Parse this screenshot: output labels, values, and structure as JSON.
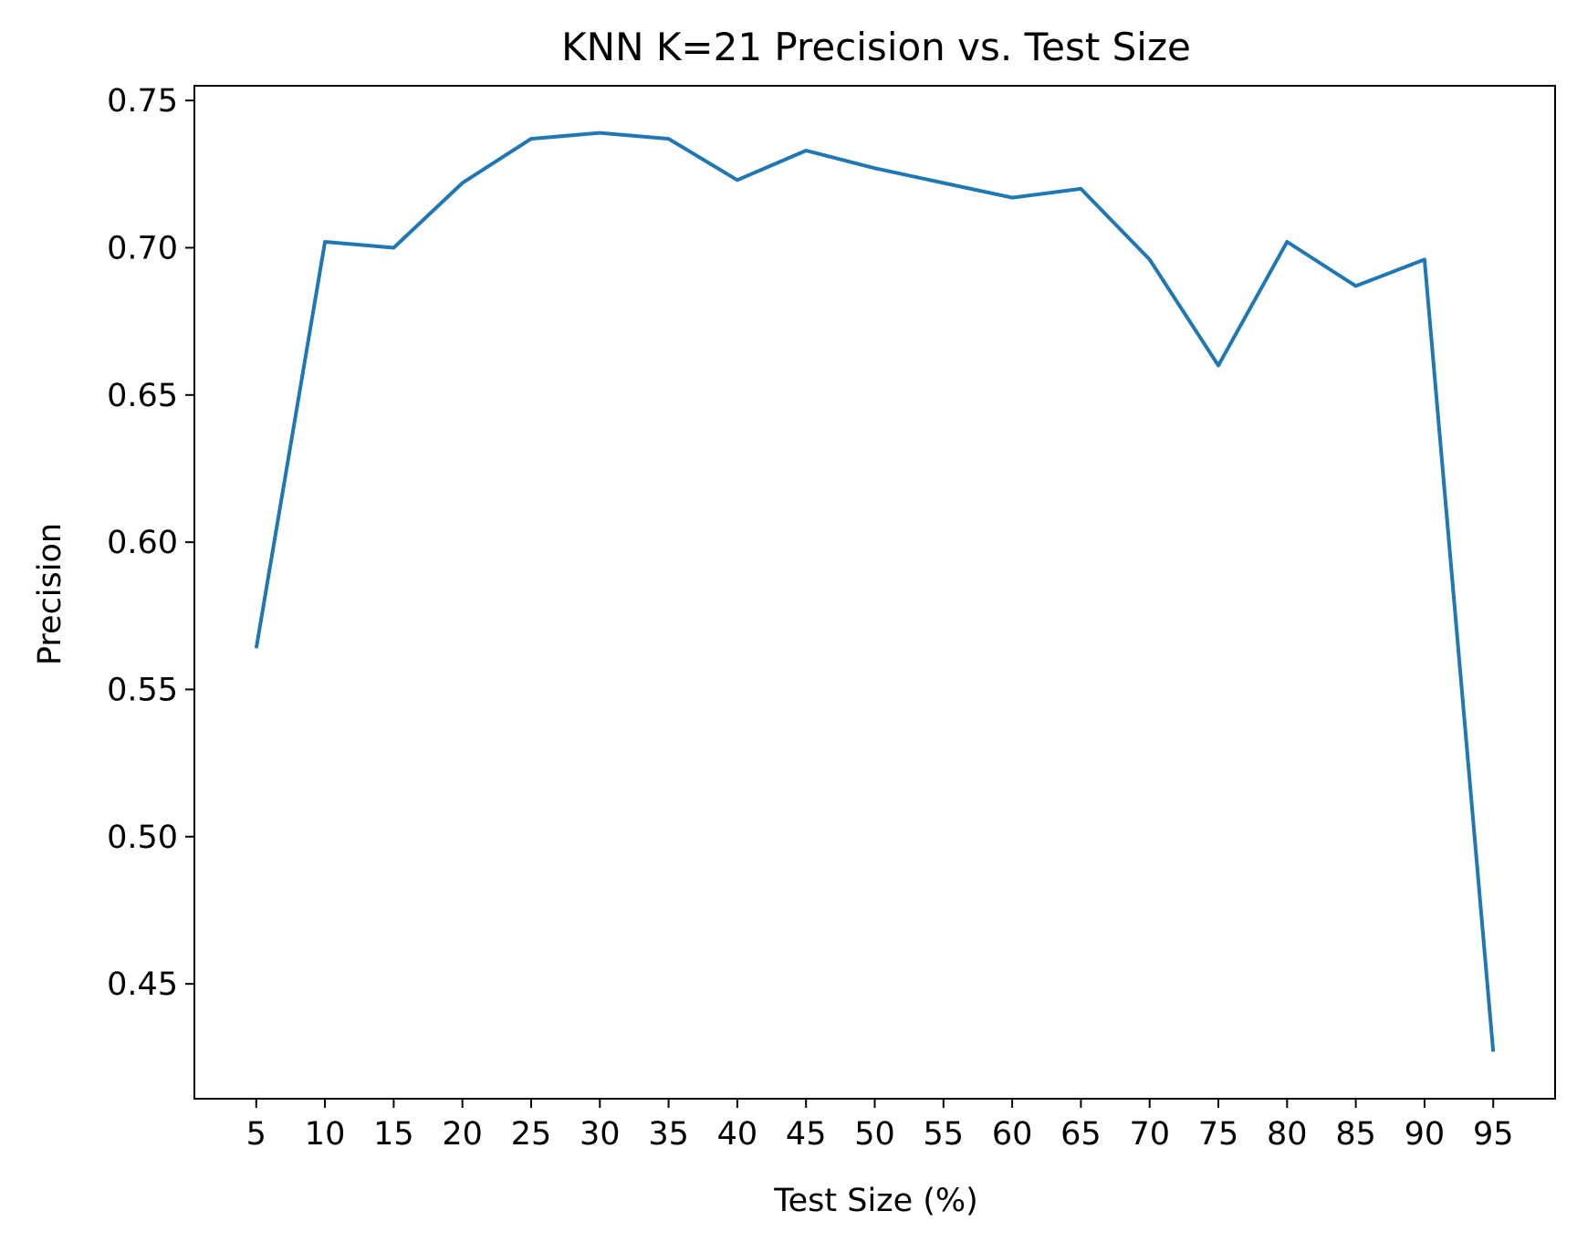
{
  "chart_data": {
    "type": "line",
    "title": "KNN K=21  Precision vs. Test Size",
    "xlabel": "Test Size (%)",
    "ylabel": "Precision",
    "x": [
      5,
      10,
      15,
      20,
      25,
      30,
      35,
      40,
      45,
      50,
      55,
      60,
      65,
      70,
      75,
      80,
      85,
      90,
      95
    ],
    "series": [
      {
        "values": [
          0.564,
          0.702,
          0.7,
          0.722,
          0.737,
          0.739,
          0.737,
          0.723,
          0.733,
          0.727,
          0.722,
          0.717,
          0.72,
          0.696,
          0.66,
          0.702,
          0.687,
          0.696,
          0.427
        ],
        "color": "#1f77b4"
      }
    ],
    "xticks": [
      "5",
      "10",
      "15",
      "20",
      "25",
      "30",
      "35",
      "40",
      "45",
      "50",
      "55",
      "60",
      "65",
      "70",
      "75",
      "80",
      "85",
      "90",
      "95"
    ],
    "yticks": [
      "0.45",
      "0.50",
      "0.55",
      "0.60",
      "0.65",
      "0.70",
      "0.75"
    ],
    "xlim": [
      0.5,
      99.5
    ],
    "ylim": [
      0.411,
      0.755
    ],
    "grid": false,
    "legend": "none"
  }
}
